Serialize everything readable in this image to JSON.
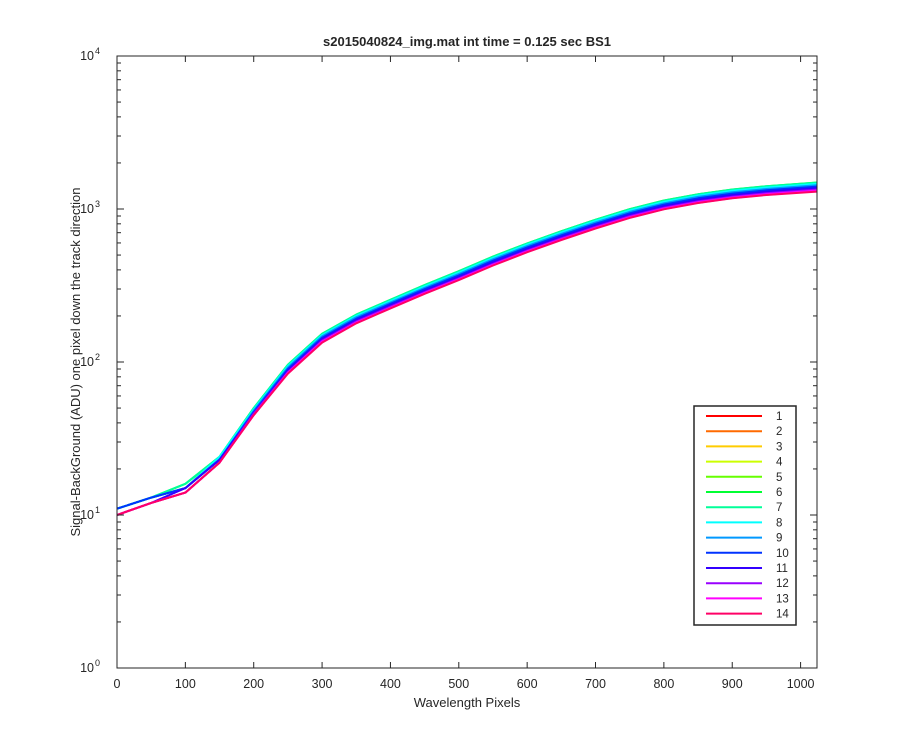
{
  "chart_data": {
    "type": "line",
    "title": "s2015040824_img.mat int time = 0.125 sec   BS1",
    "xlabel": "Wavelength Pixels",
    "ylabel": "Signal-BackGround (ADU) one pixel down the track direction",
    "xlim": [
      0,
      1024
    ],
    "ylim": [
      1,
      10000
    ],
    "yscale": "log",
    "xticks": [
      0,
      100,
      200,
      300,
      400,
      500,
      600,
      700,
      800,
      900,
      1000
    ],
    "yticks": [
      {
        "base": "10",
        "exp": "0",
        "value": 1
      },
      {
        "base": "10",
        "exp": "1",
        "value": 10
      },
      {
        "base": "10",
        "exp": "2",
        "value": 100
      },
      {
        "base": "10",
        "exp": "3",
        "value": 1000
      },
      {
        "base": "10",
        "exp": "4",
        "value": 10000
      }
    ],
    "grid": false,
    "legend_position": "lower-right",
    "x": [
      0,
      50,
      100,
      150,
      200,
      250,
      300,
      350,
      400,
      450,
      500,
      550,
      600,
      650,
      700,
      750,
      800,
      850,
      900,
      950,
      1024
    ],
    "series": [
      {
        "name": "1",
        "color": "#ff0000",
        "values": [
          10,
          12,
          14,
          22,
          45,
          85,
          135,
          180,
          225,
          280,
          345,
          430,
          525,
          630,
          750,
          880,
          1000,
          1100,
          1180,
          1240,
          1310
        ]
      },
      {
        "name": "2",
        "color": "#ff6a00",
        "values": [
          10,
          12,
          14,
          22,
          46,
          87,
          138,
          184,
          230,
          287,
          354,
          441,
          538,
          645,
          768,
          900,
          1024,
          1126,
          1208,
          1270,
          1340
        ]
      },
      {
        "name": "3",
        "color": "#ffcc00",
        "values": [
          11,
          13,
          15,
          23,
          47,
          90,
          143,
          190,
          238,
          297,
          366,
          456,
          557,
          668,
          795,
          932,
          1060,
          1166,
          1251,
          1315,
          1390
        ]
      },
      {
        "name": "4",
        "color": "#ccff00",
        "values": [
          11,
          13,
          15,
          23,
          48,
          92,
          147,
          196,
          245,
          305,
          376,
          469,
          572,
          687,
          817,
          958,
          1090,
          1199,
          1286,
          1352,
          1430
        ]
      },
      {
        "name": "5",
        "color": "#66ff00",
        "values": [
          11,
          13,
          15,
          24,
          49,
          94,
          150,
          200,
          250,
          312,
          384,
          479,
          585,
          702,
          835,
          979,
          1114,
          1225,
          1315,
          1382,
          1460
        ]
      },
      {
        "name": "6",
        "color": "#00ff33",
        "values": [
          11,
          13,
          16,
          24,
          50,
          96,
          153,
          204,
          255,
          318,
          392,
          489,
          596,
          716,
          851,
          998,
          1136,
          1249,
          1341,
          1409,
          1490
        ]
      },
      {
        "name": "7",
        "color": "#00ff99",
        "values": [
          11,
          13,
          16,
          24,
          50,
          96,
          153,
          204,
          255,
          318,
          392,
          488,
          596,
          715,
          850,
          997,
          1135,
          1248,
          1340,
          1408,
          1488
        ]
      },
      {
        "name": "8",
        "color": "#00ffff",
        "values": [
          11,
          13,
          15,
          24,
          49,
          94,
          150,
          200,
          250,
          312,
          384,
          479,
          585,
          702,
          835,
          979,
          1114,
          1225,
          1315,
          1382,
          1460
        ]
      },
      {
        "name": "9",
        "color": "#0099ff",
        "values": [
          11,
          13,
          15,
          23,
          48,
          92,
          147,
          196,
          245,
          305,
          376,
          469,
          572,
          687,
          817,
          958,
          1090,
          1199,
          1286,
          1352,
          1430
        ]
      },
      {
        "name": "10",
        "color": "#0033ff",
        "values": [
          11,
          13,
          15,
          23,
          47,
          90,
          144,
          192,
          240,
          299,
          368,
          459,
          561,
          673,
          800,
          938,
          1068,
          1174,
          1260,
          1325,
          1400
        ]
      },
      {
        "name": "11",
        "color": "#3300ff",
        "values": [
          10,
          12,
          15,
          23,
          46,
          88,
          141,
          188,
          235,
          292,
          360,
          449,
          548,
          658,
          783,
          918,
          1044,
          1148,
          1232,
          1295,
          1370
        ]
      },
      {
        "name": "12",
        "color": "#9900ff",
        "values": [
          10,
          12,
          14,
          22,
          46,
          86,
          138,
          184,
          230,
          286,
          352,
          438,
          535,
          643,
          765,
          897,
          1020,
          1122,
          1204,
          1266,
          1340
        ]
      },
      {
        "name": "13",
        "color": "#ff00ff",
        "values": [
          10,
          12,
          14,
          22,
          45,
          85,
          136,
          181,
          226,
          282,
          347,
          432,
          528,
          634,
          754,
          884,
          1006,
          1106,
          1187,
          1248,
          1320
        ]
      },
      {
        "name": "14",
        "color": "#ff0066",
        "values": [
          10,
          12,
          14,
          22,
          45,
          84,
          134,
          179,
          224,
          279,
          343,
          427,
          522,
          627,
          746,
          874,
          995,
          1094,
          1174,
          1234,
          1300
        ]
      }
    ]
  }
}
